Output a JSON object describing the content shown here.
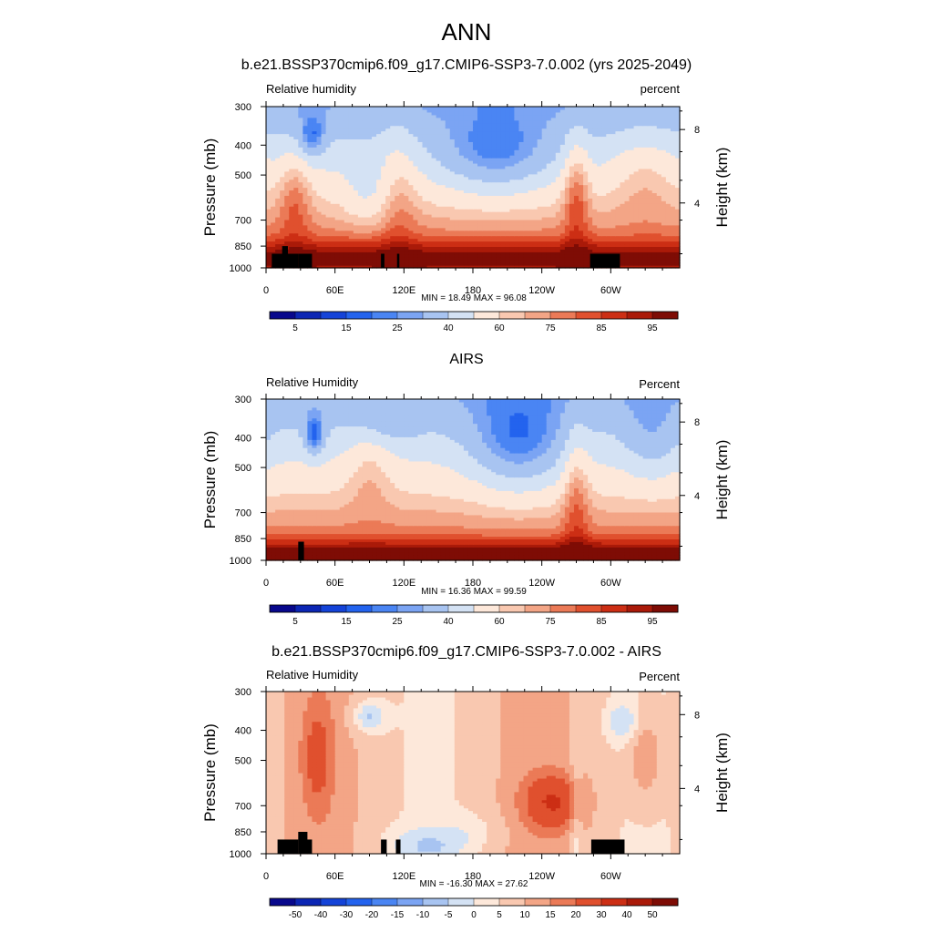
{
  "page_title": "ANN",
  "colors": {
    "rh_scale": [
      "#08088c",
      "#0c26b4",
      "#1443d8",
      "#2363ee",
      "#4a85f3",
      "#7ba4f3",
      "#a8c4f1",
      "#d4e2f4",
      "#fde8da",
      "#f9c8b0",
      "#f3a586",
      "#eb7a57",
      "#e0502e",
      "#cc2e14",
      "#aa1a09",
      "#7e0c05"
    ],
    "diff_scale": [
      "#08088c",
      "#0c26b4",
      "#1443d8",
      "#2363ee",
      "#4a85f3",
      "#7ba4f3",
      "#a8c4f1",
      "#d4e2f4",
      "#fde8da",
      "#f9c8b0",
      "#f3a586",
      "#eb7a57",
      "#e0502e",
      "#cc2e14",
      "#aa1a09",
      "#7e0c05"
    ],
    "topography": "#000000"
  },
  "chart_data": [
    {
      "type": "heatmap",
      "title": "b.e21.BSSP370cmip6.f09_g17.CMIP6-SSP3-7.0.002 (yrs 2025-2049)",
      "left_string": "Relative humidity",
      "right_string": "percent",
      "ylabel": "Pressure (mb)",
      "y2label": "Height (km)",
      "x_ticks": [
        "0",
        "60E",
        "120E",
        "180",
        "120W",
        "60W"
      ],
      "y_ticks": [
        "300",
        "400",
        "500",
        "700",
        "850",
        "1000"
      ],
      "y2_ticks": [
        "8",
        "4"
      ],
      "xlim": [
        0,
        360
      ],
      "ylim": [
        1000,
        300
      ],
      "min_max": "MIN = 18.49  MAX = 96.08",
      "colorbar_labels": [
        "5",
        "15",
        "25",
        "40",
        "60",
        "75",
        "85",
        "95"
      ],
      "grid": false
    },
    {
      "type": "heatmap",
      "title": "AIRS",
      "left_string": "Relative Humidity",
      "right_string": "Percent",
      "ylabel": "Pressure (mb)",
      "y2label": "Height (km)",
      "x_ticks": [
        "0",
        "60E",
        "120E",
        "180",
        "120W",
        "60W"
      ],
      "y_ticks": [
        "300",
        "400",
        "500",
        "700",
        "850",
        "1000"
      ],
      "y2_ticks": [
        "8",
        "4"
      ],
      "xlim": [
        0,
        360
      ],
      "ylim": [
        1000,
        300
      ],
      "min_max": "MIN = 16.36  MAX = 99.59",
      "colorbar_labels": [
        "5",
        "15",
        "25",
        "40",
        "60",
        "75",
        "85",
        "95"
      ],
      "grid": false
    },
    {
      "type": "heatmap",
      "title": "b.e21.BSSP370cmip6.f09_g17.CMIP6-SSP3-7.0.002 - AIRS",
      "left_string": "Relative Humidity",
      "right_string": "Percent",
      "ylabel": "Pressure (mb)",
      "y2label": "Height (km)",
      "x_ticks": [
        "0",
        "60E",
        "120E",
        "180",
        "120W",
        "60W"
      ],
      "y_ticks": [
        "300",
        "400",
        "500",
        "700",
        "850",
        "1000"
      ],
      "y2_ticks": [
        "8",
        "4"
      ],
      "xlim": [
        0,
        360
      ],
      "ylim": [
        1000,
        300
      ],
      "min_max": "MIN = -16.30  MAX = 27.62",
      "colorbar_labels": [
        "-50",
        "-40",
        "-30",
        "-20",
        "-15",
        "-10",
        "-5",
        "0",
        "5",
        "10",
        "15",
        "20",
        "30",
        "40",
        "50"
      ],
      "grid": false
    }
  ]
}
